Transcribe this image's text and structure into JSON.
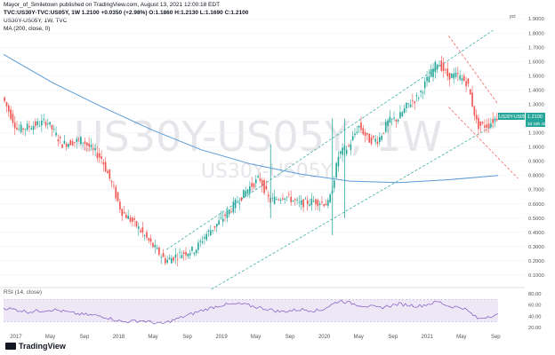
{
  "header": {
    "author_line": "Mayor_of_Smiletown published on TradingView.com, August 13, 2021 12:00:18 EDT",
    "symbol_line": "TVC:US30Y-TVC:US05Y, 1W 1.2100 +0.0350 (+2.98%) O:1.1860 H:1.2130 L:1.1690 C:1.2100",
    "study_line": "US30Y-US05Y, 1W, TVC",
    "ma_label": "MA (200, close, 0)",
    "rsi_label": "RSI (14, close)",
    "currency_unit": "pct"
  },
  "watermark": {
    "symbol": "US30Y-US05Y, 1W",
    "sub": "US30Y-US05Y"
  },
  "price_badge": {
    "symbol": "US30Y-US05Y",
    "value": "1.2100",
    "countdown": "3d 19h 42"
  },
  "brand": {
    "name": "TradingView"
  },
  "colors": {
    "up": "#26a69a",
    "down": "#ef5350",
    "ma": "#5b9bd5",
    "rsi": "#7e57c2",
    "rsi_band": "#ede7f6",
    "channel_up": "#26a69a",
    "channel_down": "#ef5350"
  },
  "chart_data": [
    {
      "type": "candlestick",
      "title": "US30Y-US05Y, 1W, TVC",
      "y_ticks": [
        "1.9000",
        "1.8000",
        "1.7000",
        "1.6000",
        "1.5000",
        "1.4000",
        "1.3000",
        "1.2000",
        "1.1000",
        "1.0000",
        "0.9000",
        "0.8000",
        "0.7000",
        "0.6000",
        "0.5000",
        "0.4000",
        "0.3000",
        "0.2000",
        "0.1000"
      ],
      "x_ticks": [
        "2017",
        "May",
        "Sep",
        "2018",
        "May",
        "Sep",
        "2019",
        "May",
        "Sep",
        "2020",
        "May",
        "Sep",
        "2021",
        "May",
        "Sep"
      ],
      "ylim": [
        0.05,
        1.92
      ],
      "last_value": 1.21,
      "approx_path": [
        {
          "t": 0.0,
          "v": 1.35
        },
        {
          "t": 0.03,
          "v": 1.12
        },
        {
          "t": 0.06,
          "v": 1.15
        },
        {
          "t": 0.09,
          "v": 1.18
        },
        {
          "t": 0.12,
          "v": 1.02
        },
        {
          "t": 0.16,
          "v": 1.05
        },
        {
          "t": 0.2,
          "v": 0.92
        },
        {
          "t": 0.22,
          "v": 0.75
        },
        {
          "t": 0.24,
          "v": 0.55
        },
        {
          "t": 0.27,
          "v": 0.45
        },
        {
          "t": 0.3,
          "v": 0.32
        },
        {
          "t": 0.33,
          "v": 0.2
        },
        {
          "t": 0.36,
          "v": 0.25
        },
        {
          "t": 0.39,
          "v": 0.28
        },
        {
          "t": 0.41,
          "v": 0.38
        },
        {
          "t": 0.44,
          "v": 0.48
        },
        {
          "t": 0.47,
          "v": 0.6
        },
        {
          "t": 0.5,
          "v": 0.72
        },
        {
          "t": 0.52,
          "v": 0.78
        },
        {
          "t": 0.54,
          "v": 0.62
        },
        {
          "t": 0.57,
          "v": 0.66
        },
        {
          "t": 0.6,
          "v": 0.6
        },
        {
          "t": 0.63,
          "v": 0.62
        },
        {
          "t": 0.66,
          "v": 0.6
        },
        {
          "t": 0.68,
          "v": 0.95
        },
        {
          "t": 0.7,
          "v": 1.0
        },
        {
          "t": 0.72,
          "v": 1.15
        },
        {
          "t": 0.74,
          "v": 1.05
        },
        {
          "t": 0.76,
          "v": 1.05
        },
        {
          "t": 0.78,
          "v": 1.18
        },
        {
          "t": 0.8,
          "v": 1.2
        },
        {
          "t": 0.82,
          "v": 1.3
        },
        {
          "t": 0.84,
          "v": 1.35
        },
        {
          "t": 0.86,
          "v": 1.48
        },
        {
          "t": 0.88,
          "v": 1.6
        },
        {
          "t": 0.9,
          "v": 1.5
        },
        {
          "t": 0.92,
          "v": 1.5
        },
        {
          "t": 0.94,
          "v": 1.45
        },
        {
          "t": 0.96,
          "v": 1.15
        },
        {
          "t": 0.98,
          "v": 1.15
        },
        {
          "t": 1.0,
          "v": 1.21
        }
      ],
      "ma_path": [
        {
          "t": 0.0,
          "v": 1.65
        },
        {
          "t": 0.1,
          "v": 1.45
        },
        {
          "t": 0.2,
          "v": 1.28
        },
        {
          "t": 0.3,
          "v": 1.12
        },
        {
          "t": 0.4,
          "v": 0.98
        },
        {
          "t": 0.5,
          "v": 0.88
        },
        {
          "t": 0.6,
          "v": 0.81
        },
        {
          "t": 0.7,
          "v": 0.76
        },
        {
          "t": 0.8,
          "v": 0.75
        },
        {
          "t": 0.9,
          "v": 0.77
        },
        {
          "t": 1.0,
          "v": 0.8
        }
      ]
    },
    {
      "type": "line",
      "title": "RSI (14, close)",
      "y_ticks": [
        "80.00",
        "60.00",
        "40.00",
        "20.00"
      ],
      "ylim": [
        15,
        85
      ],
      "bands": [
        30,
        70
      ],
      "approx_path": [
        {
          "t": 0.0,
          "v": 55
        },
        {
          "t": 0.05,
          "v": 48
        },
        {
          "t": 0.1,
          "v": 52
        },
        {
          "t": 0.15,
          "v": 44
        },
        {
          "t": 0.2,
          "v": 40
        },
        {
          "t": 0.24,
          "v": 30
        },
        {
          "t": 0.28,
          "v": 32
        },
        {
          "t": 0.32,
          "v": 26
        },
        {
          "t": 0.36,
          "v": 38
        },
        {
          "t": 0.4,
          "v": 50
        },
        {
          "t": 0.44,
          "v": 60
        },
        {
          "t": 0.48,
          "v": 62
        },
        {
          "t": 0.52,
          "v": 55
        },
        {
          "t": 0.56,
          "v": 48
        },
        {
          "t": 0.6,
          "v": 52
        },
        {
          "t": 0.64,
          "v": 50
        },
        {
          "t": 0.68,
          "v": 68
        },
        {
          "t": 0.72,
          "v": 60
        },
        {
          "t": 0.76,
          "v": 55
        },
        {
          "t": 0.8,
          "v": 62
        },
        {
          "t": 0.84,
          "v": 58
        },
        {
          "t": 0.88,
          "v": 66
        },
        {
          "t": 0.9,
          "v": 58
        },
        {
          "t": 0.93,
          "v": 55
        },
        {
          "t": 0.96,
          "v": 35
        },
        {
          "t": 0.98,
          "v": 40
        },
        {
          "t": 1.0,
          "v": 42
        }
      ]
    }
  ]
}
